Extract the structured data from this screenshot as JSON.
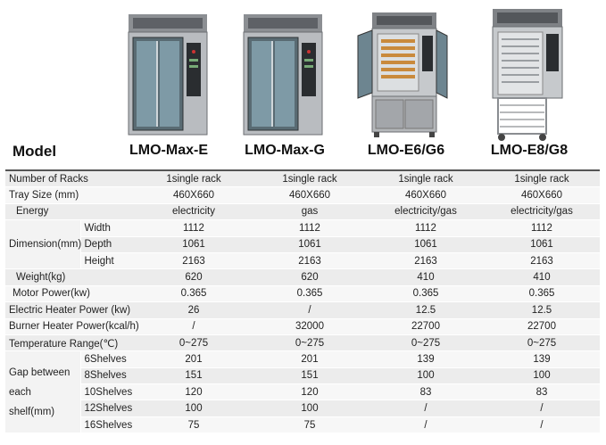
{
  "header": {
    "model_label": "Model",
    "products": [
      {
        "name": "LMO-Max-E",
        "icon": "rack-oven-glass-door-icon"
      },
      {
        "name": "LMO-Max-G",
        "icon": "rack-oven-glass-door-icon"
      },
      {
        "name": "LMO-E6/G6",
        "icon": "deck-oven-open-door-icon"
      },
      {
        "name": "LMO-E8/G8",
        "icon": "rack-oven-open-door-trolley-icon"
      }
    ]
  },
  "table": {
    "rows": [
      {
        "label": "Number of Racks",
        "values": [
          "1single rack",
          "1single rack",
          "1single rack",
          "1single rack"
        ]
      },
      {
        "label": "Tray Size (mm)",
        "values": [
          "460X660",
          "460X660",
          "460X660",
          "460X660"
        ]
      },
      {
        "label": "Energy",
        "values": [
          "electricity",
          "gas",
          "electricity/gas",
          "electricity/gas"
        ]
      },
      {
        "group": "Dimension(mm)",
        "sub": "Width",
        "values": [
          "1112",
          "1112",
          "1112",
          "1112"
        ]
      },
      {
        "sub": "Depth",
        "values": [
          "1061",
          "1061",
          "1061",
          "1061"
        ]
      },
      {
        "sub": "Height",
        "values": [
          "2163",
          "2163",
          "2163",
          "2163"
        ]
      },
      {
        "label": "Weight(kg)",
        "values": [
          "620",
          "620",
          "410",
          "410"
        ]
      },
      {
        "label": "Motor Power(kw)",
        "values": [
          "0.365",
          "0.365",
          "0.365",
          "0.365"
        ]
      },
      {
        "label": "Electric Heater Power (kw)",
        "values": [
          "26",
          "/",
          "12.5",
          "12.5"
        ]
      },
      {
        "label": "Burner Heater Power(kcal/h)",
        "values": [
          "/",
          "32000",
          "22700",
          "22700"
        ]
      },
      {
        "label": "Temperature Range(℃)",
        "values": [
          "0~275",
          "0~275",
          "0~275",
          "0~275"
        ]
      },
      {
        "group_line1": "Gap between",
        "group_line2": "each shelf(mm)",
        "sub": "6Shelves",
        "values": [
          "201",
          "201",
          "139",
          "139"
        ]
      },
      {
        "sub": "8Shelves",
        "values": [
          "151",
          "151",
          "100",
          "100"
        ]
      },
      {
        "sub": "10Shelves",
        "values": [
          "120",
          "120",
          "83",
          "83"
        ]
      },
      {
        "sub": "12Shelves",
        "values": [
          "100",
          "100",
          "/",
          "/"
        ]
      },
      {
        "sub": "16Shelves",
        "values": [
          "75",
          "75",
          "/",
          "/"
        ]
      }
    ]
  }
}
